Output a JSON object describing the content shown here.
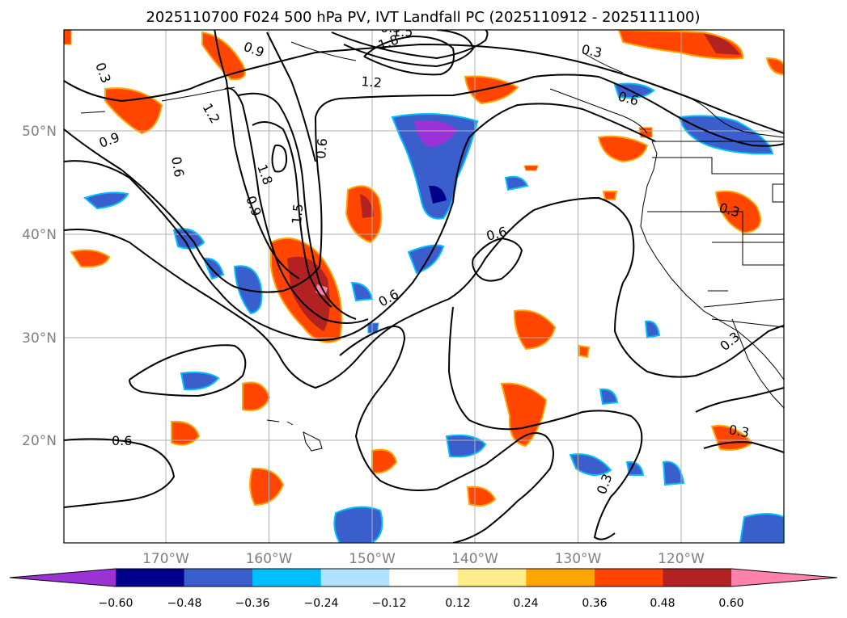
{
  "title": "2025110700 F024 500 hPa PV, IVT Landfall PC (2025110912 - 2025111100)",
  "map": {
    "lat_ticks": [
      "50°N",
      "40°N",
      "30°N",
      "20°N"
    ],
    "lon_ticks": [
      "170°W",
      "160°W",
      "150°W",
      "140°W",
      "130°W",
      "120°W"
    ],
    "gridlines": true
  },
  "contour_labels": [
    "0.3",
    "0.9",
    "1.5",
    "1.8",
    "1.2",
    "0.3",
    "0.6",
    "0.9",
    "1.2",
    "0.6",
    "1.8",
    "0.6",
    "0.9",
    "1.5",
    "0.6",
    "0.6",
    "0.3",
    "0.3",
    "0.6",
    "0.3",
    "0.3",
    "0.3"
  ],
  "colorbar": {
    "ticks": [
      "−0.60",
      "−0.48",
      "−0.36",
      "−0.24",
      "−0.12",
      "0.12",
      "0.24",
      "0.36",
      "0.48",
      "0.60"
    ],
    "colors": [
      "#9b32d6",
      "#00008b",
      "#3a5fcd",
      "#00bfff",
      "#b0e2ff",
      "#ffffff",
      "#ffec8b",
      "#ffa500",
      "#ff4500",
      "#b22222",
      "#ff82ab"
    ],
    "extend": "both"
  }
}
